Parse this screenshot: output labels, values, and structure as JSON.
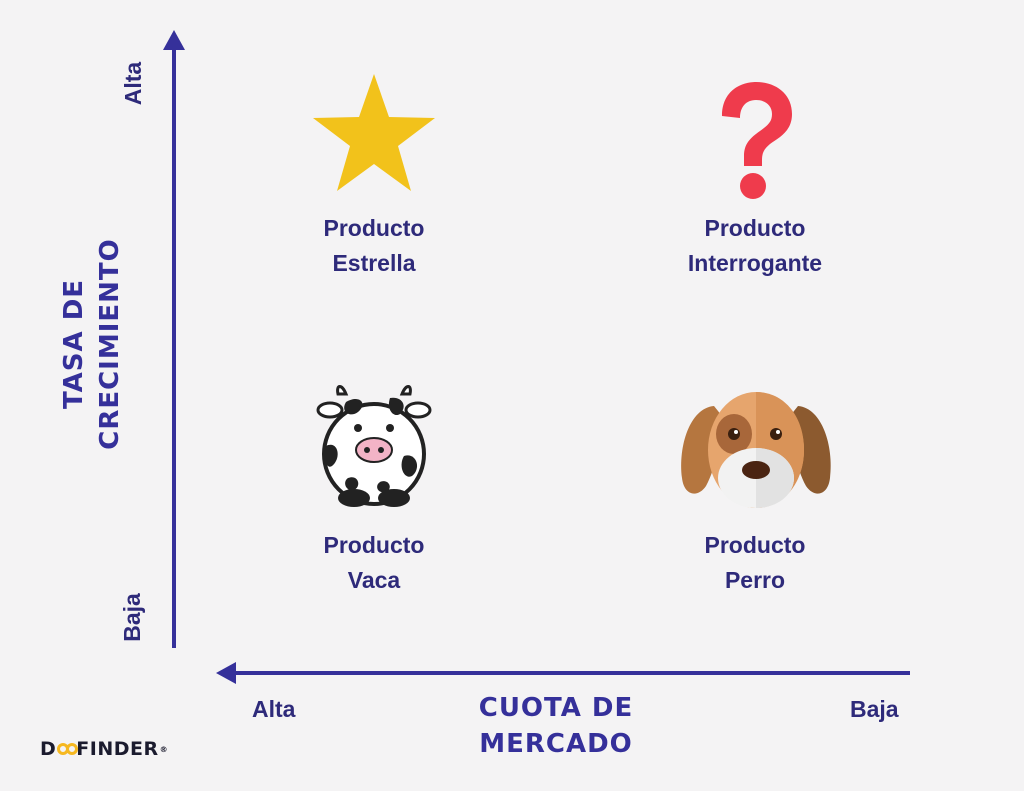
{
  "y_axis": {
    "title_line1": "TASA DE",
    "title_line2": "CRECIMIENTO",
    "high_label": "Alta",
    "low_label": "Baja"
  },
  "x_axis": {
    "title_line1": "CUOTA DE",
    "title_line2": "MERCADO",
    "high_label": "Alta",
    "low_label": "Baja"
  },
  "quadrants": {
    "star": {
      "line1": "Producto",
      "line2": "Estrella",
      "icon": "star-icon"
    },
    "question": {
      "line1": "Producto",
      "line2": "Interrogante",
      "icon": "question-mark-icon"
    },
    "cow": {
      "line1": "Producto",
      "line2": "Vaca",
      "icon": "cow-icon"
    },
    "dog": {
      "line1": "Producto",
      "line2": "Perro",
      "icon": "dog-icon"
    }
  },
  "logo": {
    "text_before": "D",
    "text_after": "FINDER",
    "mark": "®"
  },
  "colors": {
    "background": "#f4f3f4",
    "axis": "#35309a",
    "text": "#2e2a7a",
    "star": "#f2c21b",
    "question": "#ef3b4c",
    "logo_accent": "#f6b820"
  }
}
